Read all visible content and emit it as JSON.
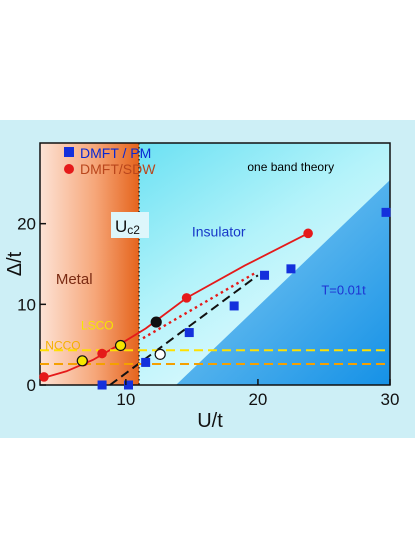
{
  "chart_data": {
    "type": "scatter",
    "xlabel": "U/t",
    "ylabel": "Δ/t",
    "xlim": [
      3.5,
      30
    ],
    "ylim": [
      0,
      30
    ],
    "x_ticks": [
      10,
      20,
      30
    ],
    "y_ticks": [
      0,
      10,
      20
    ],
    "grid": false,
    "legend_position": "top-left",
    "legend_entries": [
      {
        "label": "DMFT / PM",
        "marker": "square",
        "color": "#1430dc",
        "text_color": "#0a28d2"
      },
      {
        "label": "DMFT/SDW",
        "marker": "circle",
        "color": "#e51a1a",
        "text_color": "#b9461c"
      }
    ],
    "series": [
      {
        "name": "DMFT / PM",
        "marker": "square",
        "color": "#1430dc",
        "points": [
          [
            8.2,
            0.0
          ],
          [
            10.2,
            0.0
          ],
          [
            11.5,
            2.8
          ],
          [
            14.8,
            6.5
          ],
          [
            18.2,
            9.8
          ],
          [
            20.5,
            13.6
          ],
          [
            22.5,
            14.4
          ],
          [
            29.7,
            21.4
          ]
        ]
      },
      {
        "name": "DMFT/SDW",
        "marker": "circle",
        "color": "#e51a1a",
        "points": [
          [
            3.8,
            1.0
          ],
          [
            6.8,
            2.9
          ],
          [
            8.2,
            3.9
          ],
          [
            14.6,
            10.8
          ],
          [
            23.8,
            18.8
          ]
        ]
      }
    ],
    "extra_points": [
      {
        "x": 6.7,
        "y": 3.0,
        "color": "#f5e600",
        "kind": "NCCO point"
      },
      {
        "x": 9.6,
        "y": 4.9,
        "color": "#f5e600",
        "kind": "LSCO point"
      },
      {
        "x": 12.3,
        "y": 7.8,
        "color": "#111111",
        "kind": "filled"
      },
      {
        "x": 12.6,
        "y": 3.8,
        "color": "#ffffff",
        "kind": "open"
      }
    ],
    "lines": [
      {
        "kind": "solid",
        "color": "#e51a1a",
        "points": [
          [
            3.6,
            0.8
          ],
          [
            5.5,
            1.7
          ],
          [
            7.5,
            3.1
          ],
          [
            9.5,
            5.0
          ],
          [
            11.5,
            7.0
          ],
          [
            14.6,
            10.8
          ],
          [
            19.0,
            14.8
          ],
          [
            23.8,
            18.8
          ]
        ]
      },
      {
        "kind": "dotted",
        "color": "#e51a1a",
        "points": [
          [
            11.3,
            5.8
          ],
          [
            19.8,
            13.9
          ]
        ]
      },
      {
        "kind": "dashed",
        "color": "#111111",
        "points": [
          [
            8.8,
            0.0
          ],
          [
            20.0,
            13.6
          ]
        ]
      },
      {
        "kind": "dashed",
        "color": "#ffe000",
        "points": [
          [
            3.5,
            4.3
          ],
          [
            30.0,
            4.3
          ]
        ]
      },
      {
        "kind": "dashed",
        "color": "#f5a000",
        "points": [
          [
            3.5,
            2.6
          ],
          [
            30.0,
            2.6
          ]
        ]
      }
    ],
    "regions": [
      {
        "label": "Metal",
        "x_from": 3.5,
        "x_to": 11.0
      },
      {
        "label": "Insulator",
        "x_from": 11.0,
        "x_to": 30.0
      }
    ],
    "critical_line_x": 11.0,
    "annotations": [
      {
        "text": "one band theory",
        "x": 19.2,
        "y": 26.5,
        "color": "#000000",
        "size": 12,
        "anchor": "start"
      },
      {
        "text": "Insulator",
        "x": 15.0,
        "y": 18.4,
        "color": "#1838c8",
        "size": 14,
        "anchor": "start"
      },
      {
        "text": "T=0.01t",
        "x": 24.8,
        "y": 11.2,
        "color": "#1e32d2",
        "size": 13,
        "anchor": "start"
      },
      {
        "text": "Metal",
        "x": 4.7,
        "y": 12.5,
        "color": "#7a2a12",
        "size": 15,
        "anchor": "start"
      },
      {
        "text": "LSCO",
        "x": 6.6,
        "y": 6.9,
        "color": "#f5e600",
        "size": 12,
        "anchor": "start"
      },
      {
        "text": "NCCO",
        "x": 3.9,
        "y": 4.4,
        "color": "#f5b000",
        "size": 12,
        "anchor": "start"
      }
    ],
    "uc2_label": "U",
    "uc2_subscript": "c2"
  }
}
